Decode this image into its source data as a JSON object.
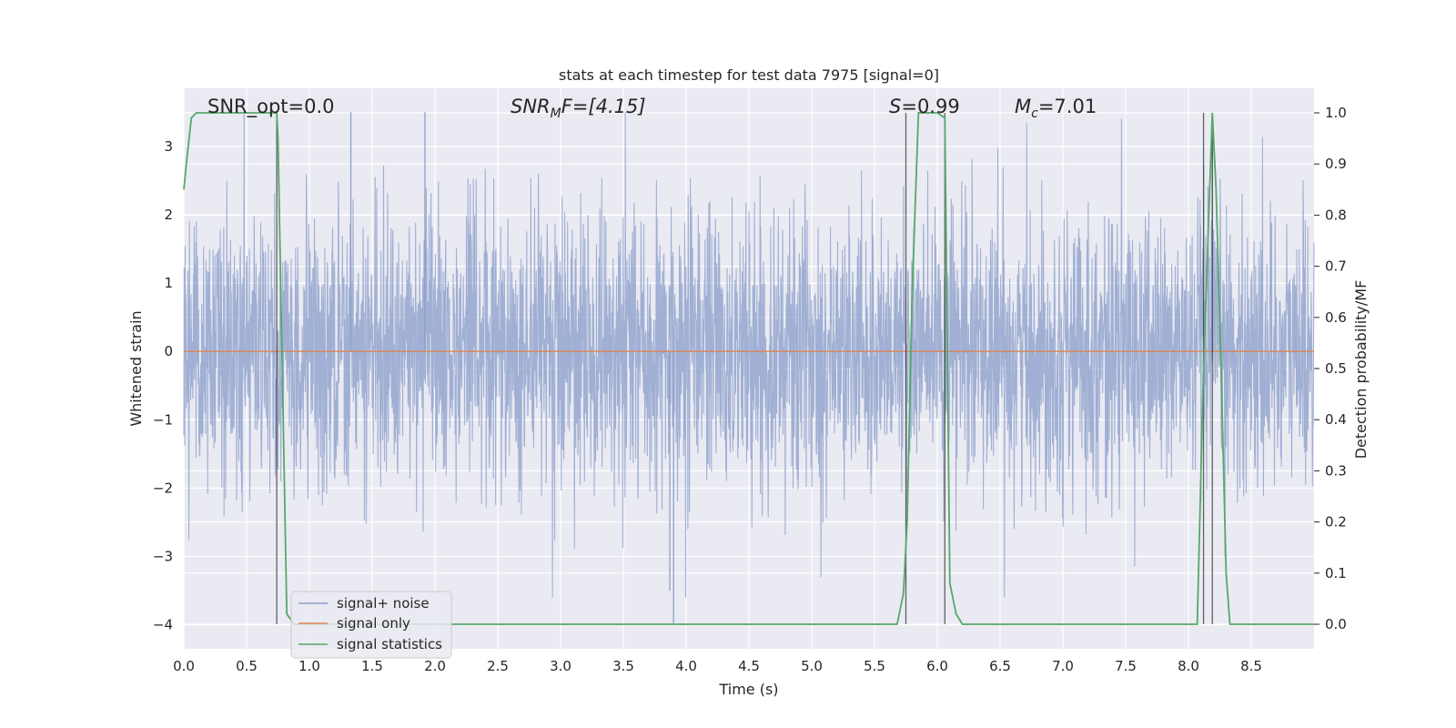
{
  "chart_data": {
    "type": "line",
    "title": "stats at each timestep for test data 7975 [signal=0]",
    "xlabel": "Time (s)",
    "ylabel": "Whitened strain",
    "y2label": "Detection probability/MF",
    "xlim": [
      0,
      9.0
    ],
    "ylim": [
      -4.35,
      3.85
    ],
    "y2lim": [
      -0.048,
      1.048
    ],
    "xticks": [
      "0.0",
      "0.5",
      "1.0",
      "1.5",
      "2.0",
      "2.5",
      "3.0",
      "3.5",
      "4.0",
      "4.5",
      "5.0",
      "5.5",
      "6.0",
      "6.5",
      "7.0",
      "7.5",
      "8.0",
      "8.5"
    ],
    "yticks": [
      "−4",
      "−3",
      "−2",
      "−1",
      "0",
      "1",
      "2",
      "3"
    ],
    "y2ticks": [
      "0.0",
      "0.1",
      "0.2",
      "0.3",
      "0.4",
      "0.5",
      "0.6",
      "0.7",
      "0.8",
      "0.9",
      "1.0"
    ],
    "grid": true,
    "legend_position": "lower-left",
    "annotations": {
      "snr_opt": "SNR_opt=0.0",
      "snr_mf_sym": "SNR",
      "snr_mf_sub": "M",
      "snr_mf_rest": "F=[4.15]",
      "s_sym": "S",
      "s_rest": "=0.99",
      "mc_sym": "M",
      "mc_sub": "c",
      "mc_rest": "=7.01"
    },
    "series": [
      {
        "name": "signal+ noise",
        "color": "#8da0cb",
        "y_range_typical": [
          -2.0,
          2.3
        ],
        "y_extremes": [
          -4.0,
          3.5
        ]
      },
      {
        "name": "signal only",
        "color": "#dd8452",
        "values_constant": 0.0
      },
      {
        "name": "signal statistics",
        "color": "#55a868",
        "axis": "right",
        "x": [
          0.0,
          0.02,
          0.06,
          0.1,
          0.2,
          0.3,
          0.4,
          0.5,
          0.6,
          0.7,
          0.74,
          0.75,
          0.82,
          0.88,
          1.0,
          2.0,
          3.0,
          4.0,
          5.0,
          5.5,
          5.68,
          5.73,
          5.76,
          5.8,
          5.85,
          5.9,
          6.0,
          6.06,
          6.1,
          6.15,
          6.2,
          7.0,
          7.5,
          8.0,
          8.07,
          8.12,
          8.19,
          8.22,
          8.26,
          8.3,
          8.33,
          8.5,
          9.0
        ],
        "y": [
          0.85,
          0.9,
          0.99,
          1.0,
          1.0,
          1.0,
          1.0,
          1.0,
          1.0,
          1.0,
          1.0,
          0.95,
          0.02,
          0.0,
          0.0,
          0.0,
          0.0,
          0.0,
          0.0,
          0.0,
          0.0,
          0.06,
          0.2,
          0.65,
          1.0,
          1.0,
          1.0,
          0.99,
          0.08,
          0.02,
          0.0,
          0.0,
          0.0,
          0.0,
          0.0,
          0.5,
          1.0,
          0.85,
          0.5,
          0.1,
          0.0,
          0.0,
          0.0
        ]
      }
    ],
    "vlines": [
      0.74,
      5.75,
      6.06,
      8.12,
      8.19
    ]
  }
}
